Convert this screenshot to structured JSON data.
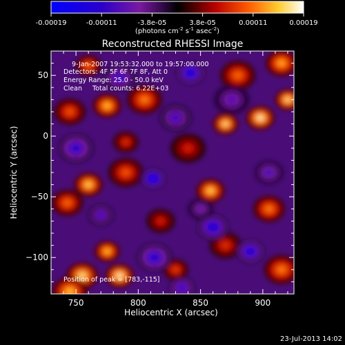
{
  "chart_data": {
    "type": "heatmap",
    "title": "Reconstructed RHESSI Image",
    "xlabel": "Heliocentric X (arcsec)",
    "ylabel": "Heliocentric Y (arcsec)",
    "xlim": [
      730,
      925
    ],
    "ylim": [
      -130,
      70
    ],
    "x_ticks": [
      750,
      800,
      850,
      900
    ],
    "y_ticks": [
      50,
      0,
      -50,
      -100
    ],
    "colorbar": {
      "range": [
        -0.00019,
        0.00019
      ],
      "tick_labels": [
        "-0.00019",
        "-0.00011",
        "-3.8e-05",
        "3.8e-05",
        "0.00011",
        "0.00019"
      ],
      "units_line1": "(photons cm",
      "units_exp1": "-2",
      "units_mid1": " s",
      "units_exp2": "-1",
      "units_mid2": " asec",
      "units_exp3": "-2",
      "units_end": ")"
    },
    "annotations": {
      "time_range": "9-Jan-2007 19:53:32.000 to 19:57:00.000",
      "detectors": "Detectors: 4F 5F 6F 7F 8F, Att 0",
      "energy": "Energy Range: 25.0 - 50.0 keV",
      "clean": "Clean     Total counts: 6.22E+03",
      "position": "Position of peak = [783,-115]"
    },
    "blobs": [
      {
        "x": 760,
        "y": 58,
        "v": 0.00012
      },
      {
        "x": 775,
        "y": 25,
        "v": 0.00016
      },
      {
        "x": 745,
        "y": 20,
        "v": 0.00011
      },
      {
        "x": 805,
        "y": 30,
        "v": 0.00013
      },
      {
        "x": 790,
        "y": -5,
        "v": 9e-05
      },
      {
        "x": 760,
        "y": -40,
        "v": 0.00017
      },
      {
        "x": 743,
        "y": -55,
        "v": 0.00012
      },
      {
        "x": 790,
        "y": -30,
        "v": 0.00011
      },
      {
        "x": 870,
        "y": 10,
        "v": 0.00018
      },
      {
        "x": 898,
        "y": 15,
        "v": 0.00019
      },
      {
        "x": 915,
        "y": 60,
        "v": 0.00015
      },
      {
        "x": 880,
        "y": 50,
        "v": 0.00012
      },
      {
        "x": 920,
        "y": 30,
        "v": 0.00018
      },
      {
        "x": 858,
        "y": -45,
        "v": 0.00017
      },
      {
        "x": 905,
        "y": -60,
        "v": 0.00013
      },
      {
        "x": 915,
        "y": -110,
        "v": 0.00013
      },
      {
        "x": 775,
        "y": -95,
        "v": 0.00016
      },
      {
        "x": 785,
        "y": -115,
        "v": 0.00019
      },
      {
        "x": 755,
        "y": -115,
        "v": 0.00018
      },
      {
        "x": 745,
        "y": -128,
        "v": 0.00016
      },
      {
        "x": 830,
        "y": -110,
        "v": 0.0001
      },
      {
        "x": 818,
        "y": -70,
        "v": 8e-05
      },
      {
        "x": 870,
        "y": -90,
        "v": 9e-05
      },
      {
        "x": 840,
        "y": -10,
        "v": 8e-05
      },
      {
        "x": 812,
        "y": -35,
        "v": -0.00019
      },
      {
        "x": 842,
        "y": 52,
        "v": -0.00017
      },
      {
        "x": 860,
        "y": -75,
        "v": -0.00016
      },
      {
        "x": 813,
        "y": -100,
        "v": -0.00014
      },
      {
        "x": 835,
        "y": -125,
        "v": -0.00013
      },
      {
        "x": 890,
        "y": -95,
        "v": -0.00016
      },
      {
        "x": 785,
        "y": 48,
        "v": -0.00012
      },
      {
        "x": 750,
        "y": -10,
        "v": -0.00013
      },
      {
        "x": 770,
        "y": -65,
        "v": -0.00011
      },
      {
        "x": 905,
        "y": -30,
        "v": -0.0001
      },
      {
        "x": 830,
        "y": 15,
        "v": -0.00011
      },
      {
        "x": 875,
        "y": 30,
        "v": -9e-05
      },
      {
        "x": 850,
        "y": -60,
        "v": -8e-05
      }
    ]
  },
  "footer": {
    "timestamp": "23-Jul-2013 14:02"
  }
}
